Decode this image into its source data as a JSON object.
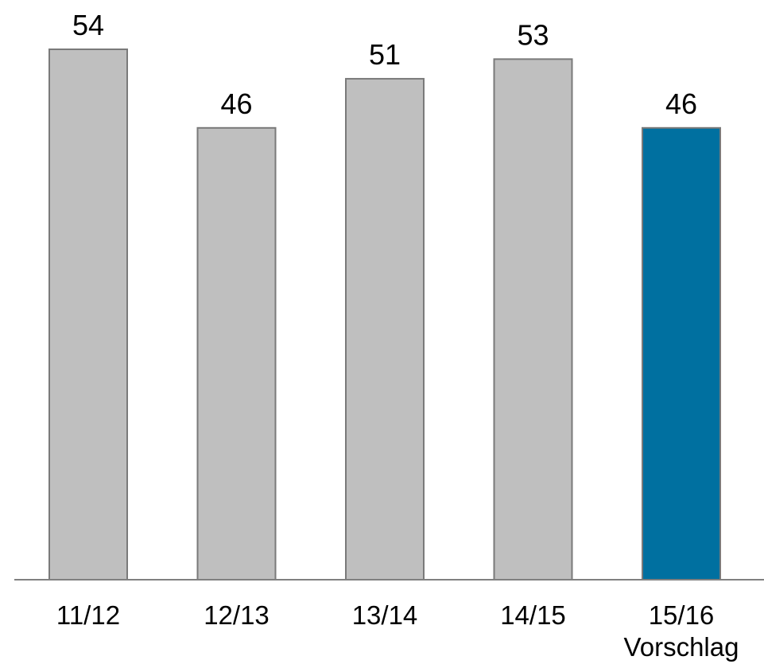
{
  "chart_data": {
    "type": "bar",
    "categories": [
      [
        "11/12"
      ],
      [
        "12/13"
      ],
      [
        "13/14"
      ],
      [
        "14/15"
      ],
      [
        "15/16",
        "Vorschlag"
      ]
    ],
    "values": [
      54,
      46,
      51,
      53,
      46
    ],
    "data_labels": [
      "54",
      "46",
      "51",
      "53",
      "46"
    ],
    "bar_colors": [
      "#bfbfbf",
      "#bfbfbf",
      "#bfbfbf",
      "#bfbfbf",
      "#0070a0"
    ],
    "bar_stroke": "#7a7a7a",
    "axis_color": "#808080",
    "ylim": [
      0,
      54
    ],
    "grid": false,
    "title": "",
    "xlabel": "",
    "ylabel": ""
  }
}
